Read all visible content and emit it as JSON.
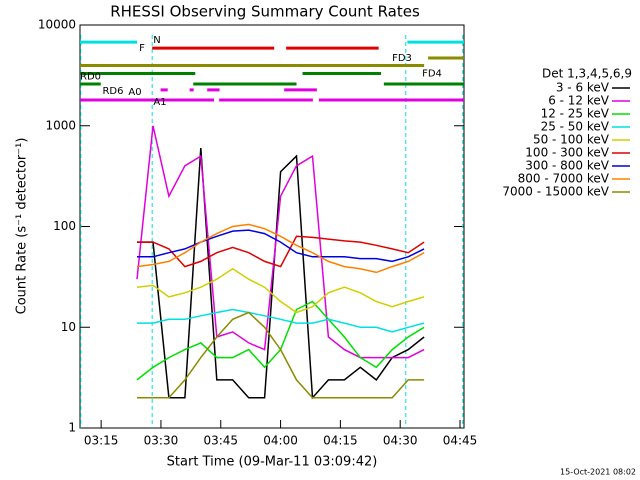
{
  "chart_data": {
    "type": "line",
    "title": "RHESSI Observing Summary Count Rates",
    "x_label": "Start Time (09-Mar-11 03:09:42)",
    "y_label": "Count Rate (s⁻¹ detector⁻¹)",
    "footer": "15-Oct-2021 08:02",
    "log_y": true,
    "xlim": [
      189.7,
      286
    ],
    "ylim": [
      1,
      10000
    ],
    "xticks": [
      {
        "value": 195,
        "label": "03:15"
      },
      {
        "value": 210,
        "label": "03:30"
      },
      {
        "value": 225,
        "label": "03:45"
      },
      {
        "value": 240,
        "label": "04:00"
      },
      {
        "value": 255,
        "label": "04:15"
      },
      {
        "value": 270,
        "label": "04:30"
      },
      {
        "value": 285,
        "label": "04:45"
      }
    ],
    "yticks": [
      1,
      10,
      100,
      1000,
      10000
    ],
    "legend_title": "Det 1,3,4,5,6,9",
    "x": [
      204,
      208,
      212,
      216,
      220,
      224,
      228,
      232,
      236,
      240,
      244,
      248,
      252,
      256,
      260,
      264,
      268,
      272,
      276
    ],
    "series": [
      {
        "name": "3 - 6 keV",
        "color": "#000000",
        "values": [
          70,
          70,
          2,
          2,
          600,
          3,
          3,
          2,
          2,
          350,
          500,
          2,
          3,
          3,
          4,
          3,
          5,
          6,
          8
        ]
      },
      {
        "name": "6 - 12 keV",
        "color": "#e000e0",
        "values": [
          30,
          1000,
          200,
          400,
          500,
          8,
          9,
          7,
          6,
          200,
          400,
          500,
          8,
          6,
          5,
          5,
          5,
          5,
          6
        ]
      },
      {
        "name": "12 - 25 keV",
        "color": "#00e000",
        "values": [
          3,
          4,
          5,
          6,
          7,
          5,
          5,
          6,
          4,
          6,
          15,
          18,
          12,
          8,
          5,
          4,
          6,
          8,
          10
        ]
      },
      {
        "name": "25 - 50 keV",
        "color": "#00e0e0",
        "values": [
          11,
          11,
          12,
          12,
          13,
          14,
          15,
          14,
          13,
          12,
          11,
          11,
          12,
          11,
          10,
          10,
          9,
          10,
          11
        ]
      },
      {
        "name": "50 - 100 keV",
        "color": "#d0d000",
        "values": [
          25,
          26,
          20,
          22,
          25,
          30,
          38,
          30,
          25,
          18,
          14,
          16,
          22,
          25,
          22,
          18,
          16,
          18,
          20
        ]
      },
      {
        "name": "100 - 300 keV",
        "color": "#e00000",
        "values": [
          70,
          70,
          60,
          40,
          45,
          55,
          62,
          55,
          45,
          40,
          80,
          78,
          75,
          72,
          70,
          65,
          60,
          55,
          70
        ]
      },
      {
        "name": "300 - 800 keV",
        "color": "#0000e0",
        "values": [
          50,
          50,
          55,
          60,
          70,
          80,
          90,
          92,
          85,
          70,
          55,
          50,
          50,
          50,
          48,
          48,
          45,
          50,
          60
        ]
      },
      {
        "name": "800 - 7000 keV",
        "color": "#ff8000",
        "values": [
          40,
          42,
          45,
          55,
          70,
          85,
          100,
          105,
          95,
          80,
          65,
          55,
          45,
          40,
          38,
          35,
          40,
          45,
          55
        ]
      },
      {
        "name": "7000 - 15000 keV",
        "color": "#8b8b00",
        "values": [
          2,
          2,
          2,
          3,
          5,
          8,
          12,
          14,
          10,
          6,
          3,
          2,
          2,
          2,
          2,
          2,
          2,
          3,
          3
        ]
      }
    ],
    "flags": [
      {
        "label": "N",
        "color": "#00e0e0",
        "level": 6770,
        "segments": [
          [
            189.7,
            204
          ],
          [
            271.8,
            286
          ]
        ]
      },
      {
        "label": "F",
        "color": "#e00000",
        "level": 5900,
        "segments": [
          [
            207.8,
            238.4
          ],
          [
            241.4,
            264.6
          ]
        ]
      },
      {
        "label": "FD3",
        "color": "#8b8b00",
        "level": 4700,
        "segments": [
          [
            277,
            286
          ]
        ]
      },
      {
        "label": "FD4",
        "color": "#8b8b00",
        "level": 3960,
        "segments": [
          [
            189.7,
            276
          ]
        ]
      },
      {
        "label": "RD0",
        "color": "#008000",
        "level": 3300,
        "segments": [
          [
            189.7,
            218.6
          ],
          [
            245.5,
            265.2
          ]
        ]
      },
      {
        "label": "RD6",
        "color": "#008000",
        "level": 2600,
        "segments": [
          [
            189.7,
            194.9
          ],
          [
            218.1,
            244
          ],
          [
            265.9,
            286
          ]
        ]
      },
      {
        "label": "A0",
        "color": "#e000e0",
        "level": 2270,
        "segments": [
          [
            209.9,
            211.7
          ],
          [
            217.2,
            218.2
          ],
          [
            221.6,
            224.7
          ],
          [
            240.9,
            249.1
          ]
        ]
      },
      {
        "label": "A1",
        "color": "#e000e0",
        "level": 1800,
        "segments": [
          [
            189.7,
            223.3
          ],
          [
            224.6,
            248.1
          ],
          [
            249.6,
            286
          ]
        ]
      }
    ],
    "markers": [
      189.9,
      207.8,
      271.4,
      285.7
    ]
  }
}
